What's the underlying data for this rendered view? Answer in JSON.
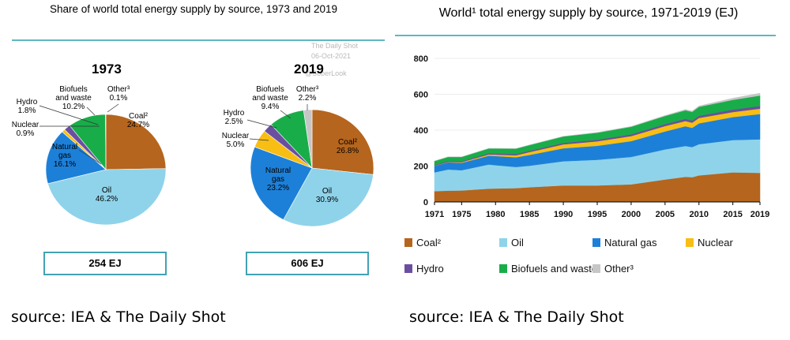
{
  "colors": {
    "Coal": "#b5651d",
    "Oil": "#8fd3ea",
    "Natural gas": "#1d80d8",
    "Nuclear": "#f8be14",
    "Hydro": "#6a4fa0",
    "Biofuels and waste": "#19ad49",
    "Other": "#c6c6c6",
    "accent": "#43a2b5"
  },
  "left_panel": {
    "title": "Share of world total energy supply by source, 1973 and 2019",
    "watermark": [
      "The Daily Shot",
      "06-Oct-2021",
      "@SoberLook"
    ]
  },
  "right_panel": {
    "title": "World¹ total energy supply by source, 1971-2019 (EJ)"
  },
  "sources": {
    "left": "source: IEA & The Daily Shot",
    "right": "source: IEA & The Daily Shot"
  },
  "chart_data": [
    {
      "type": "pie",
      "year": "1973",
      "total": "254 EJ",
      "labels": [
        "Coal²",
        "Oil",
        "Natural gas",
        "Nuclear",
        "Hydro",
        "Biofuels and waste",
        "Other³"
      ],
      "label_lines": [
        [
          "Coal²",
          "24.7%"
        ],
        [
          "Oil",
          "46.2%"
        ],
        [
          "Natural",
          "gas",
          "16.1%"
        ],
        [
          "Nuclear",
          "0.9%"
        ],
        [
          "Hydro",
          "1.8%"
        ],
        [
          "Biofuels",
          "and waste",
          "10.2%"
        ],
        [
          "Other³",
          "0.1%"
        ]
      ],
      "series_keys": [
        "Coal",
        "Oil",
        "Natural gas",
        "Nuclear",
        "Hydro",
        "Biofuels and waste",
        "Other"
      ],
      "values": [
        24.7,
        46.2,
        16.1,
        0.9,
        1.8,
        10.2,
        0.1
      ]
    },
    {
      "type": "pie",
      "year": "2019",
      "total": "606 EJ",
      "labels": [
        "Coal²",
        "Oil",
        "Natural gas",
        "Nuclear",
        "Hydro",
        "Biofuels and waste",
        "Other³"
      ],
      "label_lines": [
        [
          "Coal²",
          "26.8%"
        ],
        [
          "Oil",
          "30.9%"
        ],
        [
          "Natural",
          "gas",
          "23.2%"
        ],
        [
          "Nuclear",
          "5.0%"
        ],
        [
          "Hydro",
          "2.5%"
        ],
        [
          "Biofuels",
          "and waste",
          "9.4%"
        ],
        [
          "Other³",
          "2.2%"
        ]
      ],
      "series_keys": [
        "Coal",
        "Oil",
        "Natural gas",
        "Nuclear",
        "Hydro",
        "Biofuels and waste",
        "Other"
      ],
      "values": [
        26.8,
        30.9,
        23.2,
        5.0,
        2.5,
        9.4,
        2.2
      ]
    },
    {
      "type": "area",
      "stacked": true,
      "title": "World¹ total energy supply by source, 1971-2019 (EJ)",
      "x": [
        1971,
        1973,
        1975,
        1979,
        1980,
        1983,
        1985,
        1990,
        1995,
        2000,
        2005,
        2008,
        2009,
        2010,
        2015,
        2019
      ],
      "xticks": [
        1971,
        1975,
        1980,
        1985,
        1990,
        1995,
        2000,
        2005,
        2010,
        2015,
        2019
      ],
      "ylim": [
        0,
        800
      ],
      "yticks": [
        0,
        200,
        400,
        600,
        800
      ],
      "series": [
        {
          "name": "Coal²",
          "key": "Coal",
          "values": [
            60,
            63,
            64,
            74,
            75,
            77,
            82,
            92,
            92,
            98,
            125,
            140,
            138,
            148,
            165,
            162
          ]
        },
        {
          "name": "Oil",
          "key": "Oil",
          "values": [
            105,
            118,
            113,
            135,
            130,
            118,
            120,
            135,
            143,
            153,
            168,
            172,
            168,
            174,
            180,
            187
          ]
        },
        {
          "name": "Natural gas",
          "key": "Natural gas",
          "values": [
            36,
            40,
            41,
            49,
            51,
            54,
            60,
            72,
            78,
            88,
            100,
            110,
            107,
            116,
            128,
            141
          ]
        },
        {
          "name": "Nuclear",
          "key": "Nuclear",
          "values": [
            1,
            2,
            4,
            7,
            8,
            11,
            16,
            22,
            25,
            28,
            30,
            29,
            29,
            30,
            28,
            30
          ]
        },
        {
          "name": "Hydro",
          "key": "Hydro",
          "values": [
            4,
            5,
            5,
            6,
            6,
            7,
            7,
            8,
            9,
            10,
            11,
            12,
            12,
            12,
            14,
            15
          ]
        },
        {
          "name": "Biofuels and waste",
          "key": "Biofuels and waste",
          "values": [
            22,
            23,
            24,
            27,
            28,
            30,
            32,
            36,
            39,
            42,
            45,
            48,
            48,
            50,
            54,
            58
          ]
        },
        {
          "name": "Other³",
          "key": "Other",
          "values": [
            0.3,
            0.3,
            0.4,
            0.5,
            0.5,
            0.6,
            0.7,
            1,
            1.5,
            2,
            3,
            4,
            4.5,
            5,
            9,
            13
          ]
        }
      ],
      "legend": [
        {
          "key": "Coal",
          "label": "Coal²"
        },
        {
          "key": "Oil",
          "label": "Oil"
        },
        {
          "key": "Natural gas",
          "label": "Natural gas"
        },
        {
          "key": "Nuclear",
          "label": "Nuclear"
        },
        {
          "key": "Hydro",
          "label": "Hydro"
        },
        {
          "key": "Biofuels and waste",
          "label": "Biofuels and waste"
        },
        {
          "key": "Other",
          "label": "Other³"
        }
      ]
    }
  ]
}
